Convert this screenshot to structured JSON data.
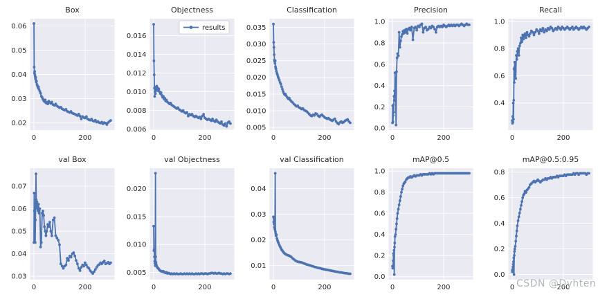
{
  "figure": {
    "watermark_text": "CSDN @Dyhten"
  },
  "style": {
    "line_color": "#4c72b0",
    "panel_bg": "#eaeaf2",
    "grid_color": "#ffffff",
    "text_color": "#262626",
    "legend_bg": "#ffffff",
    "legend_border": "#cccccc",
    "watermark_color": "#b2b6bd"
  },
  "legend": {
    "label": "results"
  },
  "epochs_x": [
    0,
    1,
    2,
    3,
    4,
    5,
    6,
    7,
    8,
    9,
    10,
    12,
    14,
    16,
    18,
    20,
    23,
    26,
    29,
    32,
    35,
    38,
    41,
    44,
    47,
    50,
    54,
    58,
    62,
    66,
    70,
    75,
    80,
    85,
    90,
    95,
    100,
    105,
    110,
    115,
    120,
    125,
    130,
    135,
    140,
    145,
    150,
    155,
    160,
    165,
    170,
    175,
    180,
    185,
    190,
    195,
    200,
    205,
    210,
    215,
    220,
    225,
    230,
    235,
    240,
    245,
    250,
    255,
    260,
    265,
    270,
    275,
    280,
    285,
    290,
    295,
    300
  ],
  "chart_data": [
    {
      "type": "line",
      "title": "Box",
      "series_name": "results",
      "xlim": [
        -15,
        315
      ],
      "xticks": [
        0,
        200
      ],
      "xtick_labels": [
        "0",
        "200"
      ],
      "ylim": [
        0.017,
        0.063
      ],
      "yticks": [
        0.02,
        0.03,
        0.04,
        0.05,
        0.06
      ],
      "ytick_labels": [
        "0.02",
        "0.03",
        "0.04",
        "0.05",
        "0.06"
      ],
      "has_legend": false,
      "y": [
        0.061,
        0.043,
        0.0405,
        0.0412,
        0.0398,
        0.039,
        0.0382,
        0.0388,
        0.0375,
        0.0368,
        0.0372,
        0.0358,
        0.0352,
        0.0345,
        0.0348,
        0.0338,
        0.033,
        0.0322,
        0.031,
        0.0305,
        0.0298,
        0.0292,
        0.0288,
        0.0295,
        0.0282,
        0.0285,
        0.0278,
        0.029,
        0.0284,
        0.028,
        0.0286,
        0.0275,
        0.0272,
        0.0278,
        0.027,
        0.0266,
        0.0262,
        0.0265,
        0.0258,
        0.0255,
        0.0252,
        0.0256,
        0.0248,
        0.0245,
        0.0243,
        0.0247,
        0.024,
        0.0238,
        0.0236,
        0.0233,
        0.023,
        0.0236,
        0.0228,
        0.0216,
        0.0226,
        0.0222,
        0.022,
        0.0226,
        0.0216,
        0.0213,
        0.0211,
        0.0216,
        0.0209,
        0.0206,
        0.0211,
        0.0203,
        0.0206,
        0.0201,
        0.0199,
        0.0203,
        0.0196,
        0.0201,
        0.0199,
        0.0193,
        0.0201,
        0.0206,
        0.021
      ]
    },
    {
      "type": "line",
      "title": "Objectness",
      "series_name": "results",
      "xlim": [
        -15,
        315
      ],
      "xticks": [
        0,
        200
      ],
      "xtick_labels": [
        "0",
        "200"
      ],
      "ylim": [
        0.0059,
        0.0178
      ],
      "yticks": [
        0.006,
        0.008,
        0.01,
        0.012,
        0.014,
        0.016
      ],
      "ytick_labels": [
        "0.006",
        "0.008",
        "0.010",
        "0.012",
        "0.014",
        "0.016"
      ],
      "has_legend": true,
      "y": [
        0.0172,
        0.0133,
        0.0118,
        0.0104,
        0.0095,
        0.01,
        0.0103,
        0.0098,
        0.0105,
        0.0101,
        0.0104,
        0.0106,
        0.0102,
        0.0104,
        0.0101,
        0.0103,
        0.01,
        0.0098,
        0.0099,
        0.0096,
        0.0094,
        0.0095,
        0.0092,
        0.0093,
        0.009,
        0.0091,
        0.0089,
        0.0088,
        0.0087,
        0.0088,
        0.0086,
        0.0085,
        0.0084,
        0.0083,
        0.0082,
        0.0083,
        0.0081,
        0.008,
        0.0079,
        0.008,
        0.0078,
        0.0077,
        0.0078,
        0.0074,
        0.0076,
        0.0075,
        0.0076,
        0.0074,
        0.0073,
        0.0074,
        0.0073,
        0.0072,
        0.0073,
        0.0071,
        0.0074,
        0.0076,
        0.0072,
        0.0071,
        0.007,
        0.0071,
        0.007,
        0.0069,
        0.0071,
        0.0069,
        0.0068,
        0.007,
        0.0068,
        0.0067,
        0.0066,
        0.0068,
        0.0065,
        0.0064,
        0.0066,
        0.0063,
        0.0067,
        0.0068,
        0.0066
      ]
    },
    {
      "type": "line",
      "title": "Classification",
      "series_name": "results",
      "xlim": [
        -15,
        315
      ],
      "xticks": [
        0,
        200
      ],
      "xtick_labels": [
        "0",
        "200"
      ],
      "ylim": [
        0.0042,
        0.0376
      ],
      "yticks": [
        0.005,
        0.01,
        0.015,
        0.02,
        0.025,
        0.03,
        0.035
      ],
      "ytick_labels": [
        "0.005",
        "0.010",
        "0.015",
        "0.020",
        "0.025",
        "0.030",
        "0.035"
      ],
      "has_legend": false,
      "y": [
        0.036,
        0.0305,
        0.029,
        0.0268,
        0.0252,
        0.0248,
        0.0242,
        0.025,
        0.0232,
        0.0228,
        0.0225,
        0.0218,
        0.0212,
        0.0208,
        0.0202,
        0.0198,
        0.0192,
        0.0185,
        0.018,
        0.0172,
        0.0165,
        0.0158,
        0.0152,
        0.0148,
        0.015,
        0.0145,
        0.014,
        0.0136,
        0.0138,
        0.0132,
        0.0128,
        0.0125,
        0.012,
        0.0117,
        0.0113,
        0.0115,
        0.011,
        0.0108,
        0.0105,
        0.0107,
        0.0102,
        0.01,
        0.0098,
        0.0094,
        0.009,
        0.0086,
        0.0084,
        0.0088,
        0.0086,
        0.0092,
        0.009,
        0.0085,
        0.0082,
        0.0086,
        0.0088,
        0.0084,
        0.008,
        0.0078,
        0.0076,
        0.0078,
        0.0074,
        0.0072,
        0.007,
        0.0073,
        0.0076,
        0.0068,
        0.0063,
        0.006,
        0.0065,
        0.0068,
        0.0064,
        0.0066,
        0.007,
        0.0072,
        0.0074,
        0.0068,
        0.0064
      ]
    },
    {
      "type": "line",
      "title": "Precision",
      "series_name": "results",
      "xlim": [
        -15,
        315
      ],
      "xticks": [
        0,
        200
      ],
      "xtick_labels": [
        "0",
        "200"
      ],
      "ylim": [
        -0.018,
        1.028
      ],
      "yticks": [
        0.0,
        0.2,
        0.4,
        0.6,
        0.8,
        1.0
      ],
      "ytick_labels": [
        "0.0",
        "0.2",
        "0.4",
        "0.6",
        "0.8",
        "1.0"
      ],
      "has_legend": false,
      "y": [
        0.05,
        0.21,
        0.06,
        0.12,
        0.22,
        0.15,
        0.3,
        0.26,
        0.35,
        0.3,
        0.52,
        0.4,
        0.03,
        0.53,
        0.66,
        0.7,
        0.68,
        0.9,
        0.76,
        0.82,
        0.86,
        0.88,
        0.91,
        0.89,
        0.92,
        0.9,
        0.93,
        0.89,
        0.93,
        0.94,
        0.92,
        0.95,
        0.83,
        0.94,
        0.95,
        0.92,
        0.96,
        0.95,
        0.97,
        0.98,
        0.9,
        0.94,
        0.95,
        0.92,
        0.93,
        0.95,
        0.94,
        0.96,
        0.95,
        0.93,
        0.9,
        0.95,
        0.96,
        0.95,
        0.96,
        0.95,
        0.97,
        0.96,
        0.95,
        0.96,
        0.97,
        0.96,
        0.97,
        0.96,
        0.97,
        0.96,
        0.97,
        0.97,
        0.96,
        0.97,
        0.98,
        0.97,
        0.96,
        0.97,
        0.98,
        0.97,
        0.97
      ]
    },
    {
      "type": "line",
      "title": "Recall",
      "series_name": "results",
      "xlim": [
        -15,
        315
      ],
      "xticks": [
        0,
        200
      ],
      "xtick_labels": [
        "0",
        "200"
      ],
      "ylim": [
        0.2,
        1.02
      ],
      "yticks": [
        0.4,
        0.6,
        0.8,
        1.0
      ],
      "ytick_labels": [
        "0.4",
        "0.6",
        "0.8",
        "1.0"
      ],
      "has_legend": false,
      "y": [
        0.27,
        0.25,
        0.3,
        0.26,
        0.4,
        0.28,
        0.42,
        0.65,
        0.55,
        0.66,
        0.7,
        0.63,
        0.58,
        0.75,
        0.72,
        0.78,
        0.8,
        0.75,
        0.82,
        0.84,
        0.88,
        0.85,
        0.9,
        0.87,
        0.89,
        0.91,
        0.88,
        0.92,
        0.9,
        0.89,
        0.91,
        0.93,
        0.92,
        0.9,
        0.92,
        0.94,
        0.93,
        0.91,
        0.94,
        0.93,
        0.95,
        0.92,
        0.94,
        0.93,
        0.95,
        0.94,
        0.96,
        0.95,
        0.93,
        0.94,
        0.95,
        0.94,
        0.96,
        0.95,
        0.94,
        0.96,
        0.95,
        0.94,
        0.95,
        0.96,
        0.95,
        0.94,
        0.95,
        0.96,
        0.94,
        0.95,
        0.96,
        0.95,
        0.94,
        0.95,
        0.96,
        0.95,
        0.96,
        0.95,
        0.94,
        0.95,
        0.96
      ]
    },
    {
      "type": "line",
      "title": "val Box",
      "series_name": "results",
      "xlim": [
        -15,
        315
      ],
      "xticks": [
        0,
        200
      ],
      "xtick_labels": [
        "0",
        "200"
      ],
      "ylim": [
        0.0285,
        0.078
      ],
      "yticks": [
        0.03,
        0.04,
        0.05,
        0.06,
        0.07
      ],
      "ytick_labels": [
        "0.03",
        "0.04",
        "0.05",
        "0.06",
        "0.07"
      ],
      "has_legend": false,
      "y": [
        0.045,
        0.067,
        0.059,
        0.05,
        0.06,
        0.045,
        0.055,
        0.0625,
        0.0755,
        0.064,
        0.061,
        0.063,
        0.06,
        0.059,
        0.062,
        0.058,
        0.06,
        0.043,
        0.045,
        0.058,
        0.059,
        0.057,
        0.052,
        0.05,
        0.048,
        0.05,
        0.053,
        0.052,
        0.054,
        0.05,
        0.048,
        0.055,
        0.056,
        0.048,
        0.047,
        0.046,
        0.044,
        0.0355,
        0.0345,
        0.0335,
        0.0345,
        0.035,
        0.038,
        0.037,
        0.039,
        0.0385,
        0.04,
        0.0405,
        0.039,
        0.037,
        0.0355,
        0.0335,
        0.0325,
        0.034,
        0.035,
        0.0345,
        0.036,
        0.035,
        0.034,
        0.0335,
        0.0325,
        0.0318,
        0.0312,
        0.032,
        0.033,
        0.034,
        0.0348,
        0.0352,
        0.036,
        0.0355,
        0.0362,
        0.0368,
        0.0355,
        0.0358,
        0.0362,
        0.0355,
        0.036
      ]
    },
    {
      "type": "line",
      "title": "val Objectness",
      "series_name": "results",
      "xlim": [
        -15,
        315
      ],
      "xticks": [
        0,
        200
      ],
      "xtick_labels": [
        "0",
        "200"
      ],
      "ylim": [
        0.0037,
        0.0237
      ],
      "yticks": [
        0.005,
        0.01,
        0.015,
        0.02
      ],
      "ytick_labels": [
        "0.005",
        "0.010",
        "0.015",
        "0.020"
      ],
      "has_legend": false,
      "y": [
        0.0133,
        0.0089,
        0.0091,
        0.0078,
        0.007,
        0.0066,
        0.0062,
        0.0228,
        0.0078,
        0.0068,
        0.0064,
        0.0061,
        0.0059,
        0.0058,
        0.0057,
        0.0056,
        0.0054,
        0.0053,
        0.0052,
        0.0052,
        0.0051,
        0.0052,
        0.005,
        0.005,
        0.0049,
        0.005,
        0.0048,
        0.0049,
        0.0048,
        0.0047,
        0.0048,
        0.0047,
        0.0048,
        0.0047,
        0.0048,
        0.0047,
        0.0047,
        0.0048,
        0.0047,
        0.0047,
        0.0048,
        0.0047,
        0.0048,
        0.0047,
        0.0048,
        0.0047,
        0.0048,
        0.0047,
        0.0047,
        0.0048,
        0.0047,
        0.0048,
        0.0047,
        0.0048,
        0.0048,
        0.0047,
        0.0048,
        0.0048,
        0.0047,
        0.0048,
        0.0048,
        0.0049,
        0.0049,
        0.0048,
        0.0049,
        0.0048,
        0.0048,
        0.0049,
        0.0048,
        0.0048,
        0.0047,
        0.0048,
        0.0047,
        0.0048,
        0.0048,
        0.0047,
        0.0048
      ]
    },
    {
      "type": "line",
      "title": "val Classification",
      "series_name": "results",
      "xlim": [
        -15,
        315
      ],
      "xticks": [
        0,
        200
      ],
      "xtick_labels": [
        "0",
        "200"
      ],
      "ylim": [
        0.0045,
        0.048
      ],
      "yticks": [
        0.01,
        0.02,
        0.03,
        0.04
      ],
      "ytick_labels": [
        "0.01",
        "0.02",
        "0.03",
        "0.04"
      ],
      "has_legend": false,
      "y": [
        0.029,
        0.027,
        0.0285,
        0.0262,
        0.025,
        0.0246,
        0.024,
        0.046,
        0.0232,
        0.0224,
        0.0216,
        0.022,
        0.0205,
        0.0198,
        0.0192,
        0.0188,
        0.018,
        0.0174,
        0.0168,
        0.0162,
        0.0158,
        0.0154,
        0.015,
        0.0147,
        0.0145,
        0.0143,
        0.0141,
        0.014,
        0.0138,
        0.0136,
        0.0133,
        0.0128,
        0.0124,
        0.012,
        0.0117,
        0.0115,
        0.0114,
        0.0113,
        0.0112,
        0.011,
        0.0108,
        0.0106,
        0.0104,
        0.0103,
        0.0101,
        0.01,
        0.0098,
        0.0097,
        0.0095,
        0.0094,
        0.0092,
        0.0091,
        0.009,
        0.0089,
        0.0087,
        0.0086,
        0.0085,
        0.0084,
        0.0083,
        0.0082,
        0.0081,
        0.008,
        0.0079,
        0.0078,
        0.0077,
        0.0076,
        0.0075,
        0.0074,
        0.0073,
        0.0073,
        0.0072,
        0.0071,
        0.007,
        0.007,
        0.0069,
        0.0068,
        0.0068
      ]
    },
    {
      "type": "line",
      "title": "mAP@0.5",
      "series_name": "results",
      "xlim": [
        -15,
        315
      ],
      "xticks": [
        0,
        200
      ],
      "xtick_labels": [
        "0",
        "200"
      ],
      "ylim": [
        -0.028,
        1.028
      ],
      "yticks": [
        0.0,
        0.2,
        0.4,
        0.6,
        0.8,
        1.0
      ],
      "ytick_labels": [
        "0.0",
        "0.2",
        "0.4",
        "0.6",
        "0.8",
        "1.0"
      ],
      "has_legend": false,
      "y": [
        0.1,
        0.08,
        0.1,
        0.15,
        0.22,
        0.2,
        0.25,
        0.02,
        0.28,
        0.32,
        0.38,
        0.4,
        0.45,
        0.5,
        0.55,
        0.6,
        0.64,
        0.68,
        0.72,
        0.76,
        0.8,
        0.83,
        0.86,
        0.88,
        0.89,
        0.9,
        0.92,
        0.93,
        0.94,
        0.94,
        0.95,
        0.94,
        0.95,
        0.96,
        0.95,
        0.96,
        0.96,
        0.96,
        0.97,
        0.96,
        0.97,
        0.97,
        0.97,
        0.97,
        0.97,
        0.98,
        0.97,
        0.98,
        0.97,
        0.98,
        0.98,
        0.98,
        0.98,
        0.98,
        0.98,
        0.98,
        0.98,
        0.98,
        0.98,
        0.98,
        0.98,
        0.98,
        0.98,
        0.98,
        0.98,
        0.98,
        0.98,
        0.98,
        0.98,
        0.98,
        0.98,
        0.98,
        0.98,
        0.98,
        0.98,
        0.98,
        0.98
      ]
    },
    {
      "type": "line",
      "title": "mAP@0.5:0.95",
      "series_name": "results",
      "xlim": [
        -15,
        315
      ],
      "xticks": [
        0,
        200
      ],
      "xtick_labels": [
        "0",
        "200"
      ],
      "ylim": [
        -0.04,
        0.83
      ],
      "yticks": [
        0.0,
        0.2,
        0.4,
        0.6,
        0.8
      ],
      "ytick_labels": [
        "0.0",
        "0.2",
        "0.4",
        "0.6",
        "0.8"
      ],
      "has_legend": false,
      "y": [
        0.03,
        0.02,
        0.04,
        0.06,
        0.08,
        0.1,
        0.13,
        0.0,
        0.15,
        0.18,
        0.2,
        0.22,
        0.26,
        0.3,
        0.34,
        0.38,
        0.42,
        0.45,
        0.48,
        0.51,
        0.54,
        0.57,
        0.6,
        0.62,
        0.63,
        0.65,
        0.64,
        0.66,
        0.67,
        0.68,
        0.7,
        0.71,
        0.72,
        0.73,
        0.72,
        0.73,
        0.74,
        0.73,
        0.72,
        0.73,
        0.74,
        0.74,
        0.75,
        0.74,
        0.75,
        0.75,
        0.76,
        0.75,
        0.76,
        0.76,
        0.76,
        0.77,
        0.76,
        0.77,
        0.77,
        0.77,
        0.77,
        0.78,
        0.77,
        0.78,
        0.78,
        0.78,
        0.78,
        0.78,
        0.79,
        0.78,
        0.79,
        0.79,
        0.78,
        0.79,
        0.79,
        0.79,
        0.79,
        0.79,
        0.78,
        0.79,
        0.79
      ]
    }
  ]
}
